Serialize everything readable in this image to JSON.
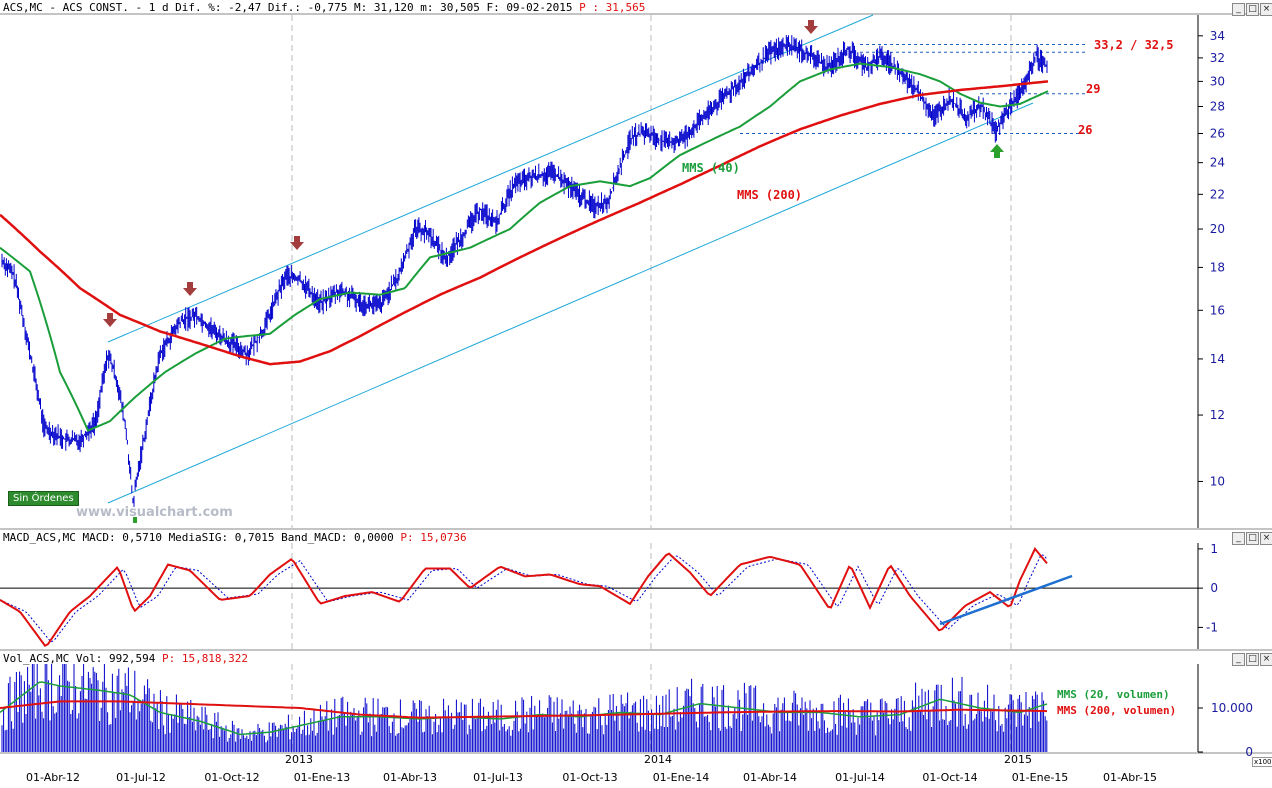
{
  "header": {
    "title": "ACS,MC - ACS CONST. -  1 d Dif. %: -2,47 Dif.: -0,775 M: 31,120 m: 30,505 F: 09-02-2015",
    "last_price": "P : 31,565",
    "macd": "MACD_ACS,MC MACD: 0,5710 MediaSIG: 0,7015 Band_MACD: 0,0000",
    "macd_last": "P: 15,0736",
    "volume": "Vol_ACS,MC Vol: 992,594",
    "volume_last": "P: 15,818,322"
  },
  "labels": {
    "mms40": "MMS (40)",
    "mms200": "MMS (200)",
    "resistance": "33,2 / 32,5",
    "level29": "29",
    "level26": "26",
    "vol20": "MMS (20, volumen)",
    "vol200": "MMS (200, volumen)",
    "sin_ordenes": "Sin Órdenes",
    "watermark": "www.visualchart.com",
    "x100": "x100"
  },
  "colors": {
    "price": "#0000cc",
    "mms40": "#1a9e3a",
    "mms200": "#e01010",
    "channel": "#1fa8d8",
    "macd": "#e01010",
    "signal": "#0000cc",
    "trend": "#1f6fd0",
    "arrow_down": "#a33c3c",
    "arrow_up": "#2aa02a"
  },
  "chart_data": [
    {
      "type": "line",
      "name": "price",
      "y_axis_ticks": [
        10,
        12,
        14,
        16,
        18,
        20,
        22,
        24,
        26,
        28,
        30,
        32,
        34
      ],
      "y_scale": "log",
      "ylim": [
        8.8,
        36
      ],
      "x_tick_labels": [
        "01-Abr-12",
        "01-Jul-12",
        "01-Oct-12",
        "01-Ene-13",
        "01-Abr-13",
        "01-Jul-13",
        "01-Oct-13",
        "01-Ene-14",
        "01-Abr-14",
        "01-Jul-14",
        "01-Oct-14",
        "01-Ene-15",
        "01-Abr-15"
      ],
      "year_labels": [
        "2013",
        "2014",
        "2015"
      ],
      "series": [
        {
          "key": "price",
          "x": [
            0,
            14,
            30,
            44,
            66,
            80,
            96,
            108,
            117,
            126,
            133,
            146,
            160,
            180,
            196,
            214,
            232,
            248,
            264,
            286,
            300,
            320,
            340,
            362,
            380,
            398,
            416,
            430,
            446,
            462,
            480,
            496,
            514,
            534,
            554,
            576,
            594,
            608,
            632,
            646,
            666,
            682,
            696,
            712,
            730,
            752,
            770,
            790,
            812,
            828,
            848,
            866,
            882,
            902,
            918,
            934,
            950,
            966,
            982,
            996,
            1010,
            1024,
            1036,
            1048
          ],
          "values": [
            18.5,
            17.6,
            14.2,
            11.6,
            11.2,
            11.2,
            11.8,
            14.2,
            13.2,
            11.5,
            9.4,
            11.6,
            14.2,
            15.5,
            15.8,
            15.1,
            14.6,
            14.2,
            15.2,
            17.6,
            17.4,
            16.3,
            16.9,
            16.3,
            16.2,
            17.5,
            20.1,
            19.7,
            18.4,
            19.6,
            21.1,
            20.3,
            22.6,
            23.1,
            23.3,
            22.1,
            21.3,
            21.6,
            25.8,
            26.1,
            25.3,
            25.6,
            26.6,
            27.8,
            29.2,
            30.8,
            32.5,
            33.2,
            32.1,
            31.1,
            32.8,
            31.2,
            32.2,
            30.5,
            29.2,
            27.2,
            28.6,
            27.2,
            28.0,
            26.1,
            28.1,
            29.5,
            32.2,
            31.2
          ]
        },
        {
          "key": "mms40",
          "x": [
            0,
            30,
            60,
            88,
            110,
            135,
            165,
            195,
            225,
            245,
            270,
            295,
            320,
            350,
            380,
            405,
            430,
            470,
            510,
            540,
            570,
            600,
            630,
            650,
            680,
            710,
            740,
            770,
            800,
            830,
            860,
            890,
            920,
            940,
            960,
            980,
            1000,
            1020,
            1048
          ],
          "values": [
            19.0,
            17.8,
            13.5,
            11.5,
            11.8,
            12.6,
            13.5,
            14.2,
            14.8,
            14.9,
            15.0,
            15.8,
            16.5,
            16.8,
            16.7,
            17.0,
            18.5,
            19.0,
            20.0,
            21.5,
            22.5,
            22.8,
            22.5,
            23.0,
            24.5,
            25.5,
            26.5,
            28.0,
            30.0,
            31.0,
            31.5,
            31.2,
            30.6,
            30.0,
            29.0,
            28.3,
            28.0,
            28.2,
            29.2
          ]
        },
        {
          "key": "mms200",
          "x": [
            0,
            40,
            80,
            120,
            160,
            200,
            240,
            270,
            300,
            330,
            360,
            400,
            440,
            480,
            520,
            560,
            600,
            640,
            680,
            720,
            760,
            800,
            840,
            880,
            920,
            960,
            1000,
            1048
          ],
          "values": [
            20.8,
            18.8,
            17.0,
            15.8,
            15.1,
            14.6,
            14.1,
            13.8,
            13.9,
            14.3,
            14.9,
            15.8,
            16.7,
            17.5,
            18.5,
            19.5,
            20.5,
            21.5,
            22.6,
            23.8,
            25.1,
            26.3,
            27.3,
            28.2,
            28.9,
            29.3,
            29.6,
            30.0
          ]
        }
      ]
    },
    {
      "type": "line",
      "name": "macd",
      "y_axis_ticks": [
        1,
        0,
        -1
      ],
      "ylim": [
        -1.55,
        1.15
      ],
      "series": [
        {
          "key": "macd",
          "x": [
            0,
            20,
            46,
            70,
            90,
            118,
            134,
            150,
            168,
            190,
            220,
            250,
            270,
            292,
            320,
            345,
            372,
            400,
            425,
            450,
            470,
            500,
            525,
            550,
            580,
            600,
            630,
            648,
            668,
            690,
            710,
            740,
            770,
            800,
            830,
            850,
            870,
            890,
            910,
            940,
            965,
            990,
            1010,
            1020,
            1035,
            1048
          ],
          "values": [
            -0.3,
            -0.6,
            -1.5,
            -0.6,
            -0.2,
            0.55,
            -0.6,
            -0.2,
            0.6,
            0.45,
            -0.3,
            -0.2,
            0.35,
            0.75,
            -0.4,
            -0.2,
            -0.1,
            -0.35,
            0.5,
            0.5,
            0.0,
            0.55,
            0.3,
            0.35,
            0.1,
            0.05,
            -0.4,
            0.3,
            0.9,
            0.4,
            -0.2,
            0.6,
            0.8,
            0.6,
            -0.55,
            0.6,
            -0.5,
            0.6,
            -0.2,
            -1.1,
            -0.45,
            -0.1,
            -0.5,
            0.2,
            1.0,
            0.6
          ]
        },
        {
          "key": "signal",
          "x": [
            0,
            26,
            52,
            76,
            98,
            124,
            140,
            158,
            176,
            198,
            228,
            258,
            278,
            300,
            328,
            352,
            380,
            408,
            432,
            457,
            477,
            507,
            532,
            557,
            587,
            607,
            637,
            656,
            676,
            698,
            718,
            748,
            778,
            808,
            838,
            858,
            878,
            898,
            918,
            948,
            973,
            998,
            1018,
            1028,
            1042,
            1048
          ],
          "values": [
            -0.3,
            -0.6,
            -1.4,
            -0.6,
            -0.2,
            0.5,
            -0.5,
            -0.2,
            0.55,
            0.45,
            -0.25,
            -0.15,
            0.35,
            0.7,
            -0.35,
            -0.2,
            -0.1,
            -0.3,
            0.45,
            0.5,
            0.0,
            0.5,
            0.3,
            0.35,
            0.1,
            0.05,
            -0.35,
            0.3,
            0.85,
            0.4,
            -0.2,
            0.55,
            0.75,
            0.6,
            -0.5,
            0.55,
            -0.45,
            0.55,
            -0.2,
            -1.05,
            -0.45,
            -0.15,
            -0.45,
            0.15,
            0.9,
            0.7
          ]
        }
      ]
    },
    {
      "type": "bar",
      "name": "volume",
      "y_axis_ticks": [
        0,
        10000
      ],
      "y_tick_labels": [
        "0",
        "10.000"
      ],
      "ylim": [
        0,
        20000
      ],
      "series": [
        {
          "key": "vol20",
          "x": [
            0,
            40,
            60,
            100,
            130,
            160,
            200,
            240,
            270,
            300,
            340,
            380,
            420,
            460,
            500,
            540,
            580,
            620,
            660,
            700,
            740,
            780,
            820,
            860,
            900,
            940,
            980,
            1020,
            1048
          ],
          "values": [
            9000,
            16000,
            15000,
            14000,
            13000,
            9000,
            7000,
            4000,
            4500,
            6000,
            8000,
            8000,
            7500,
            8000,
            7500,
            8500,
            8000,
            9000,
            8500,
            11000,
            10000,
            9000,
            9000,
            8000,
            8500,
            12000,
            10000,
            9000,
            11000
          ]
        },
        {
          "key": "vol200",
          "x": [
            0,
            60,
            120,
            180,
            240,
            300,
            360,
            420,
            480,
            540,
            600,
            660,
            720,
            780,
            840,
            900,
            960,
            1020,
            1048
          ],
          "values": [
            10000,
            11500,
            11500,
            11000,
            10500,
            10000,
            8500,
            7800,
            8000,
            8200,
            8400,
            8700,
            9000,
            9200,
            9300,
            9200,
            9600,
            9400,
            9300
          ]
        }
      ]
    }
  ]
}
